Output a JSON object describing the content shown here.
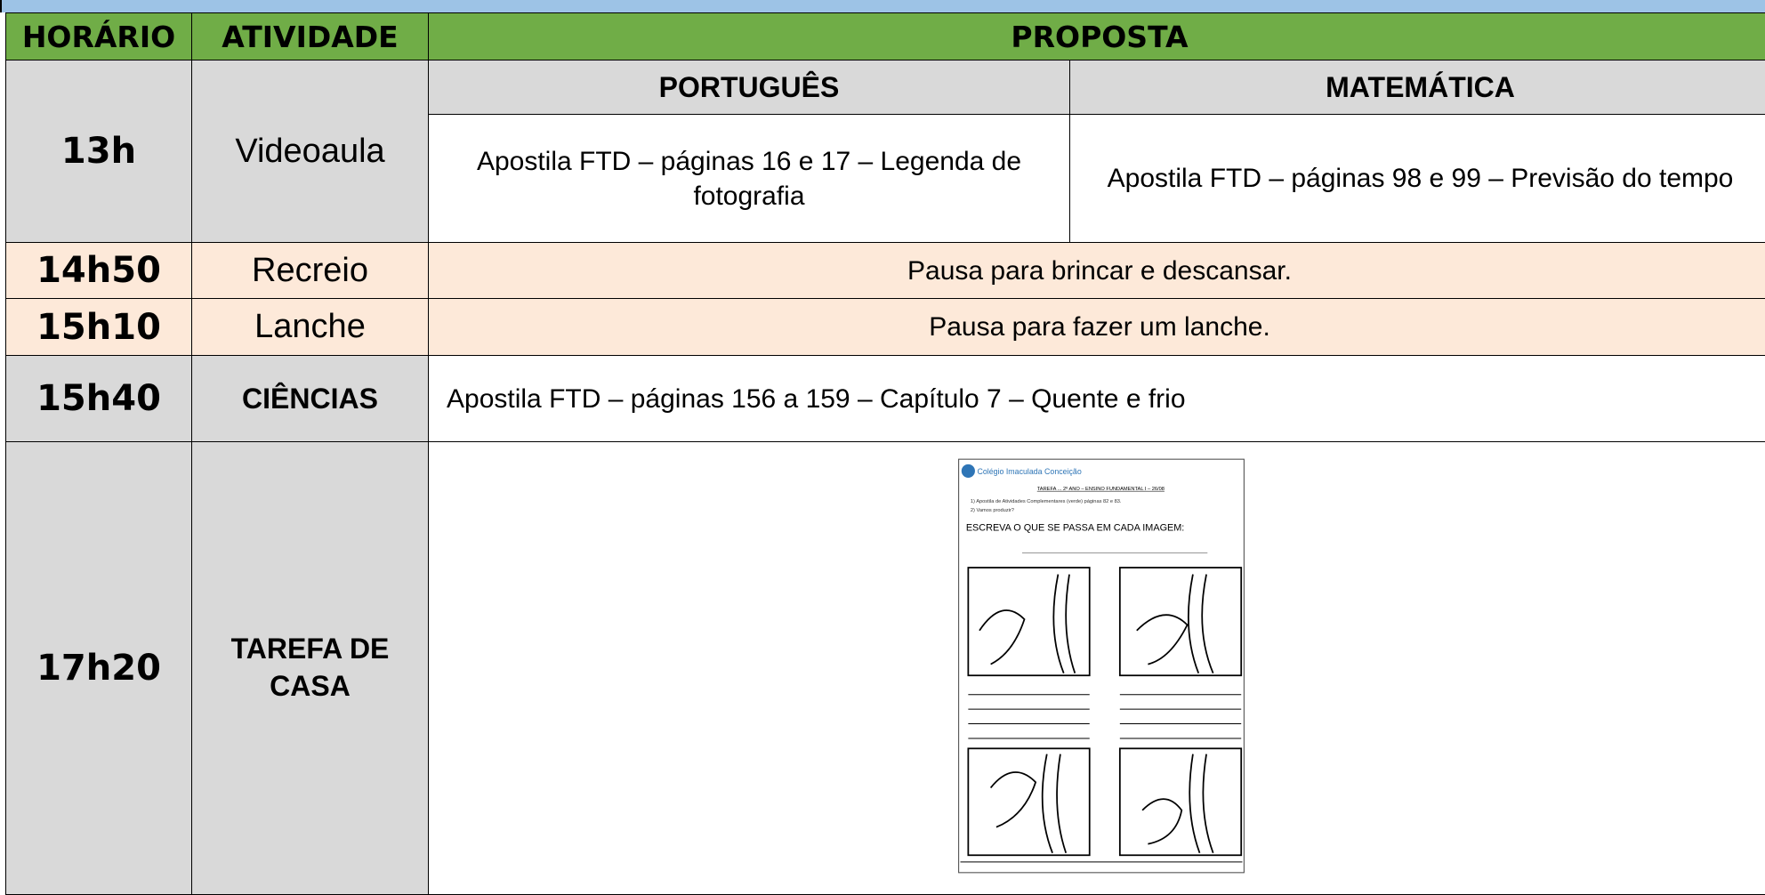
{
  "header": {
    "columns": [
      "HORÁRIO",
      "ATIVIDADE",
      "PROPOSTA"
    ]
  },
  "rows": [
    {
      "time": "13h",
      "activity": "Videoaula",
      "subjects": [
        "PORTUGUÊS",
        "MATEMÁTICA"
      ],
      "proposals": [
        "Apostila FTD – páginas 16 e 17 – Legenda de fotografia",
        "Apostila FTD – páginas 98 e 99 – Previsão do tempo"
      ]
    },
    {
      "time": "14h50",
      "activity": "Recreio",
      "proposal": "Pausa para brincar e descansar."
    },
    {
      "time": "15h10",
      "activity": "Lanche",
      "proposal": "Pausa para fazer um lanche."
    },
    {
      "time": "15h40",
      "activity": "CIÊNCIAS",
      "proposal": "Apostila FTD – páginas 156 a 159 – Capítulo 7 – Quente e frio"
    },
    {
      "time": "17h20",
      "activity": "TAREFA DE CASA",
      "worksheet": {
        "school": "Colégio Imaculada Conceição",
        "title": "TAREFA ... 2º ANO – ENSINO FUNDAMENTAL I – 26/08",
        "items": [
          "1) Apostila de Atividades Complementares (verde) páginas 82 e 83.",
          "2) Vamos produzir?"
        ],
        "instruction": "ESCREVA O QUE SE PASSA EM CADA IMAGEM:"
      }
    }
  ]
}
